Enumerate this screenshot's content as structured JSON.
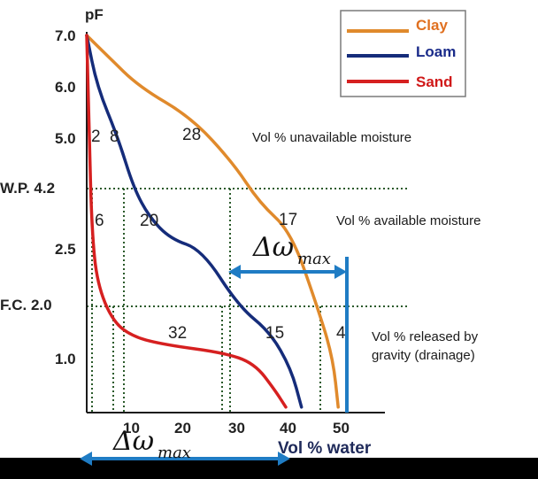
{
  "chart_data": {
    "type": "line",
    "y_axis_title": "pF",
    "x_axis_title": "Vol % water",
    "y_ticks": [
      "7.0",
      "6.0",
      "5.0",
      "W.P. 4.2",
      "2.5",
      "F.C. 2.0",
      "1.0"
    ],
    "x_ticks": [
      "10",
      "20",
      "30",
      "40",
      "50"
    ],
    "reference_lines": [
      {
        "label": "W.P.",
        "value": "4.2"
      },
      {
        "label": "F.C.",
        "value": "2.0"
      }
    ],
    "legend": [
      "Clay",
      "Loam",
      "Sand"
    ],
    "series": [
      {
        "name": "Clay",
        "color": "#e08a2c",
        "points": [
          [
            0,
            7.0
          ],
          [
            4,
            6.6
          ],
          [
            10,
            6.0
          ],
          [
            20,
            5.4
          ],
          [
            28,
            4.6
          ],
          [
            33,
            3.8
          ],
          [
            39,
            3.0
          ],
          [
            44,
            2.0
          ],
          [
            47,
            1.0
          ],
          [
            48,
            0.1
          ]
        ]
      },
      {
        "name": "Loam",
        "color": "#152c7a",
        "points": [
          [
            0,
            7.0
          ],
          [
            2,
            6.0
          ],
          [
            6,
            5.0
          ],
          [
            9,
            4.2
          ],
          [
            12,
            3.4
          ],
          [
            16,
            2.8
          ],
          [
            22,
            2.5
          ],
          [
            29,
            2.0
          ],
          [
            35,
            1.5
          ],
          [
            39,
            0.8
          ],
          [
            41,
            0.1
          ]
        ]
      },
      {
        "name": "Sand",
        "color": "#d62020",
        "points": [
          [
            0,
            7.0
          ],
          [
            0.5,
            5.0
          ],
          [
            1,
            3.0
          ],
          [
            2,
            2.2
          ],
          [
            5,
            1.7
          ],
          [
            9,
            1.4
          ],
          [
            15,
            1.25
          ],
          [
            26,
            1.1
          ],
          [
            32,
            0.9
          ],
          [
            36,
            0.4
          ],
          [
            38,
            0.1
          ]
        ]
      }
    ],
    "segment_values": [
      {
        "text": "2",
        "zone": "unavailable"
      },
      {
        "text": "8",
        "zone": "unavailable"
      },
      {
        "text": "28",
        "zone": "unavailable"
      },
      {
        "text": "6",
        "zone": "available"
      },
      {
        "text": "20",
        "zone": "available"
      },
      {
        "text": "17",
        "zone": "available"
      },
      {
        "text": "32",
        "zone": "drainage"
      },
      {
        "text": "15",
        "zone": "drainage"
      },
      {
        "text": "4",
        "zone": "drainage"
      }
    ],
    "zone_labels": {
      "unavailable": "Vol % unavailable moisture",
      "available": "Vol % available moisture",
      "drainage_line1": "Vol % released by",
      "drainage_line2": "gravity (drainage)"
    },
    "annotations": {
      "delta_symbol": "Δω",
      "delta_subscript": "max"
    },
    "colors": {
      "annotation": "#1f7cc4",
      "axis": "#1a1a1a",
      "grid": "#2a5a2a"
    }
  }
}
